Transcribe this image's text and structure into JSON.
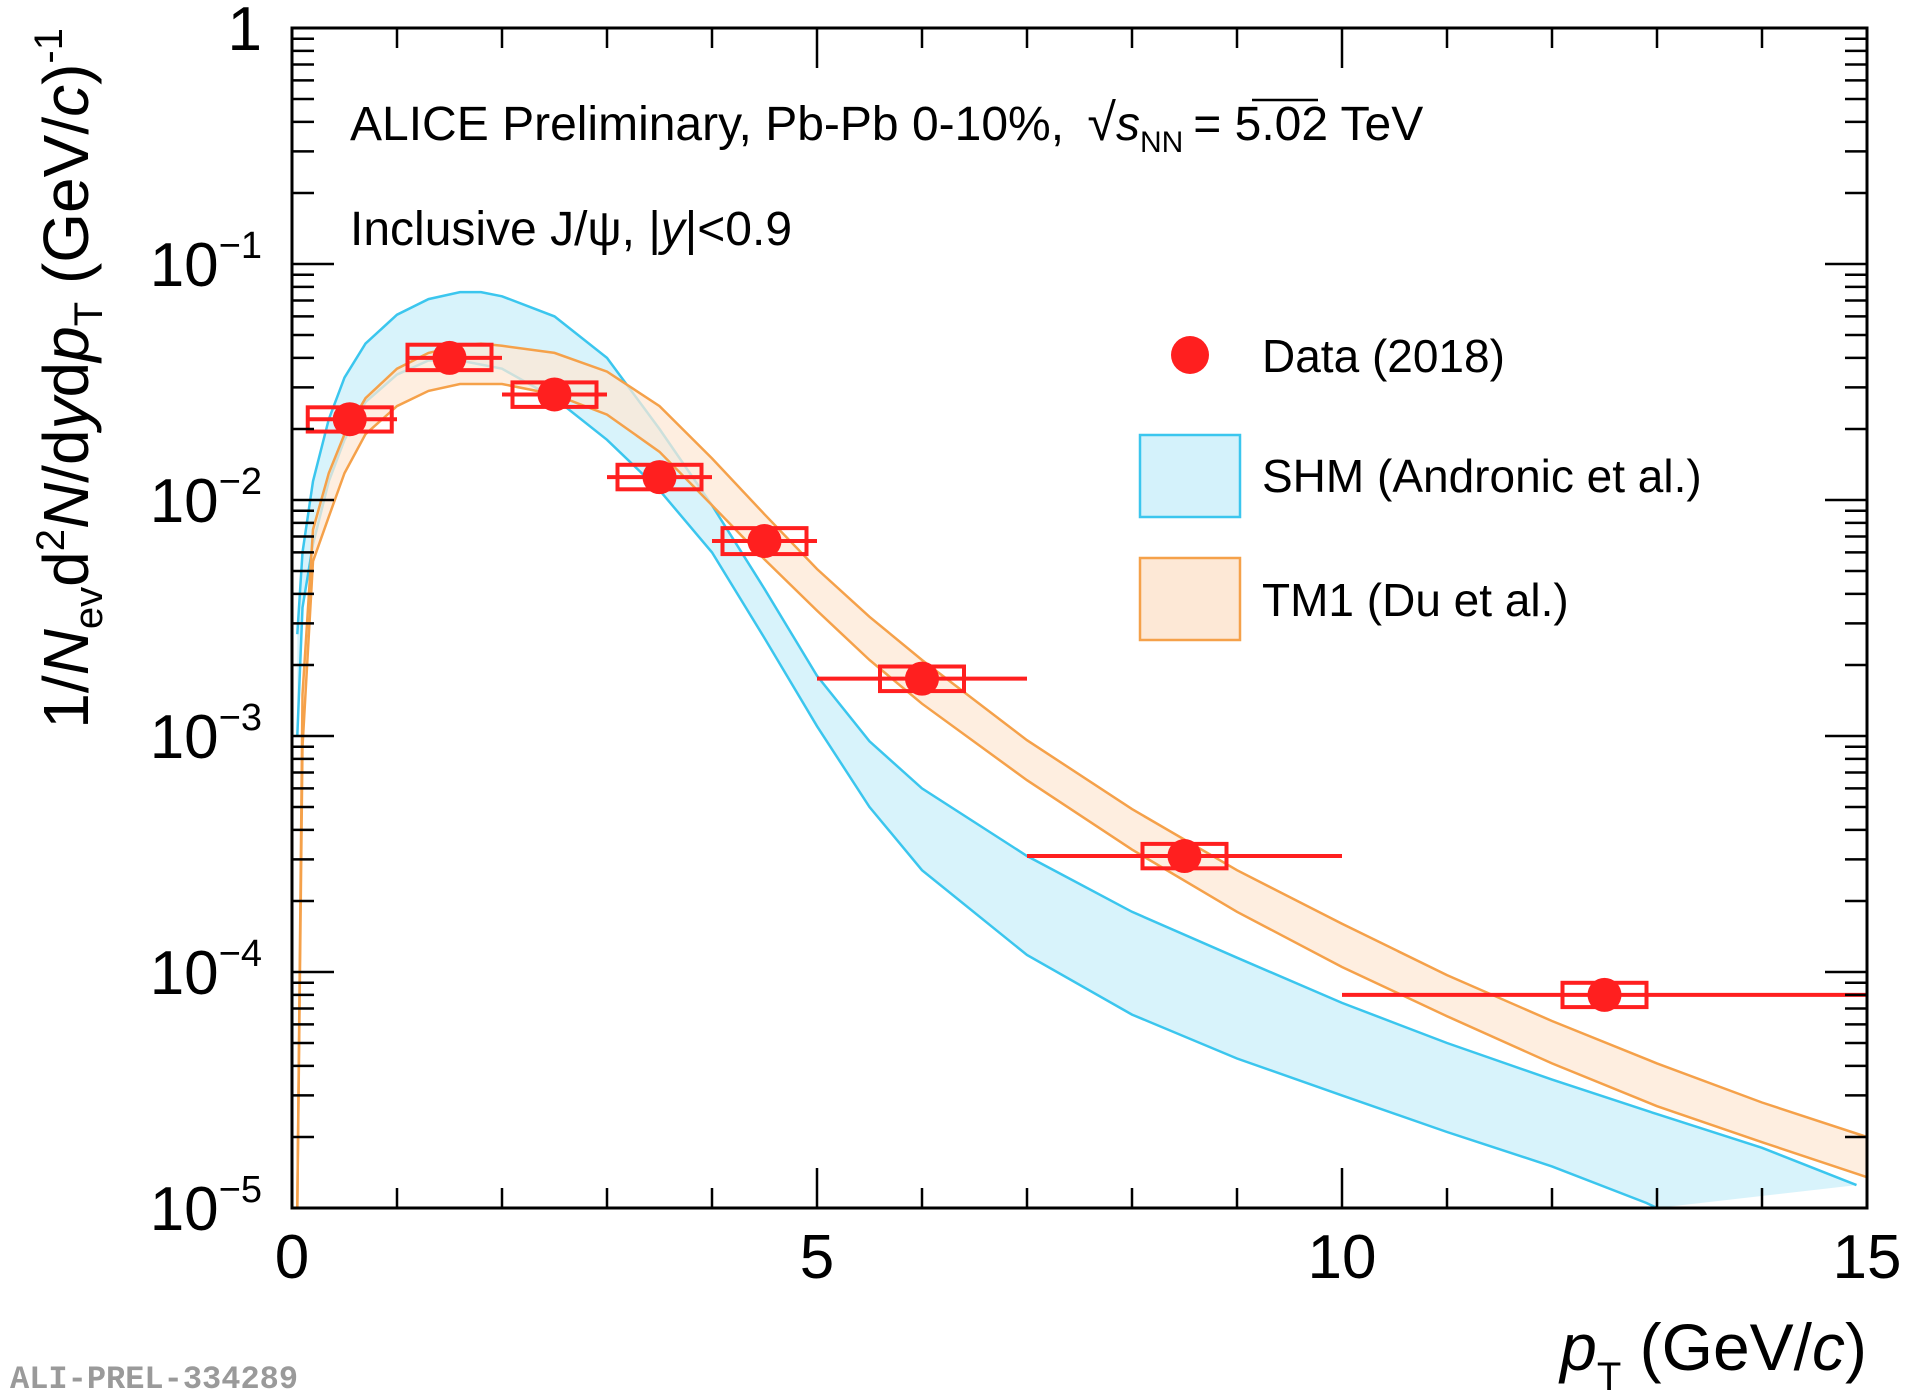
{
  "chart_data": {
    "type": "scatter",
    "title": "ALICE Preliminary, Pb-Pb 0-10%, √s_NN = 5.02 TeV",
    "title_parts": {
      "prefix": "ALICE Preliminary, Pb-Pb 0-10%,",
      "sqrt_symbol": "√",
      "s_symbol": "s",
      "s_subscript": "NN",
      "suffix": "= 5.02 TeV"
    },
    "subtitle": "Inclusive J/ψ, |y|<0.9",
    "subtitle_parts": {
      "prefix": "Inclusive J/ψ, |",
      "y": "y",
      "suffix": "|<0.9"
    },
    "xlabel": "p_T (GeV/c)",
    "xlabel_parts": {
      "p": "p",
      "sub": "T",
      "mid": " (GeV/",
      "c": "c",
      "end": ")"
    },
    "ylabel": "1/N_ev d²N/dydp_T (GeV/c)⁻¹",
    "ylabel_parts": {
      "a": "1/",
      "N": "N",
      "ev": "ev",
      "d": "d",
      "two": "2",
      "N2": "N",
      "slash": "/d",
      "y": "y",
      "d2": "d",
      "p": "p",
      "T": "T",
      "unit_open": " (GeV/",
      "c": "c",
      "unit_close": ")",
      "exp": "-1"
    },
    "xlim": [
      0,
      15
    ],
    "ylim": [
      1e-05,
      1
    ],
    "yscale": "log",
    "x_ticks": [
      0,
      5,
      10,
      15
    ],
    "x_tick_labels": [
      "0",
      "5",
      "10",
      "15"
    ],
    "y_ticks": [
      {
        "value": 1,
        "base": "1",
        "exp": ""
      },
      {
        "value": 0.1,
        "base": "10",
        "exp": "−1"
      },
      {
        "value": 0.01,
        "base": "10",
        "exp": "−2"
      },
      {
        "value": 0.001,
        "base": "10",
        "exp": "−3"
      },
      {
        "value": 0.0001,
        "base": "10",
        "exp": "−4"
      },
      {
        "value": 1e-05,
        "base": "10",
        "exp": "−5"
      }
    ],
    "legend": {
      "position": "right",
      "entries": [
        {
          "label": "Data (2018)",
          "kind": "marker",
          "color": "#ff1f1f"
        },
        {
          "label": "SHM (Andronic et al.)",
          "kind": "band",
          "fill": "#d4f2fb",
          "stroke": "#3bc6ee"
        },
        {
          "label": "TM1 (Du et al.)",
          "kind": "band",
          "fill": "#fde8d6",
          "stroke": "#f5a14a"
        }
      ]
    },
    "series": [
      {
        "name": "Data (2018)",
        "color": "#ff1f1f",
        "points": [
          {
            "x": 0.55,
            "y": 0.022,
            "xlo": 0.15,
            "xhi": 1.0,
            "syslo": 0.0195,
            "syshi": 0.0247
          },
          {
            "x": 1.5,
            "y": 0.04,
            "xlo": 1.1,
            "xhi": 2.0,
            "syslo": 0.0355,
            "syshi": 0.0455
          },
          {
            "x": 2.5,
            "y": 0.028,
            "xlo": 2.0,
            "xhi": 3.0,
            "syslo": 0.0248,
            "syshi": 0.0315
          },
          {
            "x": 3.5,
            "y": 0.0125,
            "xlo": 3.0,
            "xhi": 4.0,
            "syslo": 0.0111,
            "syshi": 0.0141
          },
          {
            "x": 4.5,
            "y": 0.0067,
            "xlo": 4.0,
            "xhi": 5.0,
            "syslo": 0.0059,
            "syshi": 0.0076
          },
          {
            "x": 6.0,
            "y": 0.00175,
            "xlo": 5.0,
            "xhi": 7.0,
            "syslo": 0.00155,
            "syshi": 0.00197
          },
          {
            "x": 8.5,
            "y": 0.00031,
            "xlo": 7.0,
            "xhi": 10.0,
            "syslo": 0.000275,
            "syshi": 0.000349
          },
          {
            "x": 12.5,
            "y": 8e-05,
            "xlo": 10.0,
            "xhi": 15.0,
            "syslo": 7.1e-05,
            "syshi": 9e-05
          }
        ]
      }
    ],
    "bands": [
      {
        "name": "SHM (Andronic et al.)",
        "fill": "#d4f2fb",
        "stroke": "#3bc6ee",
        "upper": [
          [
            0.05,
            0.0027
          ],
          [
            0.1,
            0.006
          ],
          [
            0.2,
            0.012
          ],
          [
            0.35,
            0.022
          ],
          [
            0.5,
            0.033
          ],
          [
            0.7,
            0.046
          ],
          [
            1.0,
            0.061
          ],
          [
            1.3,
            0.071
          ],
          [
            1.6,
            0.076
          ],
          [
            1.8,
            0.076
          ],
          [
            2.0,
            0.073
          ],
          [
            2.5,
            0.06
          ],
          [
            3.0,
            0.04
          ],
          [
            3.5,
            0.02
          ],
          [
            4.0,
            0.0095
          ],
          [
            4.5,
            0.0042
          ],
          [
            5.0,
            0.0018
          ],
          [
            5.5,
            0.00095
          ],
          [
            6.0,
            0.0006
          ],
          [
            7.0,
            0.00031
          ],
          [
            8.0,
            0.00018
          ],
          [
            9.0,
            0.000115
          ],
          [
            10.0,
            7.4e-05
          ],
          [
            11.0,
            5e-05
          ],
          [
            12.0,
            3.5e-05
          ],
          [
            13.0,
            2.5e-05
          ],
          [
            14.0,
            1.8e-05
          ],
          [
            14.9,
            1.25e-05
          ]
        ],
        "lower": [
          [
            0.05,
            0.001
          ],
          [
            0.1,
            0.0035
          ],
          [
            0.2,
            0.0065
          ],
          [
            0.35,
            0.012
          ],
          [
            0.5,
            0.018
          ],
          [
            0.7,
            0.026
          ],
          [
            1.0,
            0.034
          ],
          [
            1.3,
            0.039
          ],
          [
            1.6,
            0.039
          ],
          [
            2.0,
            0.036
          ],
          [
            2.5,
            0.027
          ],
          [
            3.0,
            0.018
          ],
          [
            3.5,
            0.011
          ],
          [
            4.0,
            0.006
          ],
          [
            4.5,
            0.0026
          ],
          [
            5.0,
            0.0011
          ],
          [
            5.5,
            0.0005
          ],
          [
            6.0,
            0.00027
          ],
          [
            7.0,
            0.000118
          ],
          [
            8.0,
            6.6e-05
          ],
          [
            9.0,
            4.3e-05
          ],
          [
            10.0,
            3e-05
          ],
          [
            11.0,
            2.1e-05
          ],
          [
            12.0,
            1.5e-05
          ],
          [
            12.9,
            1.05e-05
          ],
          [
            13.0,
            1e-05
          ]
        ]
      },
      {
        "name": "TM1 (Du et al.)",
        "fill": "#fde8d6",
        "stroke": "#f5a14a",
        "upper": [
          [
            0.05,
            1e-05
          ],
          [
            0.1,
            0.0015
          ],
          [
            0.2,
            0.0075
          ],
          [
            0.35,
            0.013
          ],
          [
            0.5,
            0.019
          ],
          [
            0.7,
            0.027
          ],
          [
            1.0,
            0.036
          ],
          [
            1.3,
            0.042
          ],
          [
            1.6,
            0.045
          ],
          [
            1.8,
            0.046
          ],
          [
            2.0,
            0.045
          ],
          [
            2.5,
            0.042
          ],
          [
            3.0,
            0.035
          ],
          [
            3.5,
            0.025
          ],
          [
            4.0,
            0.015
          ],
          [
            4.5,
            0.0087
          ],
          [
            5.0,
            0.0051
          ],
          [
            5.5,
            0.0032
          ],
          [
            6.0,
            0.0021
          ],
          [
            7.0,
            0.00096
          ],
          [
            8.0,
            0.00049
          ],
          [
            9.0,
            0.00027
          ],
          [
            10.0,
            0.00016
          ],
          [
            11.0,
            9.7e-05
          ],
          [
            12.0,
            6.2e-05
          ],
          [
            13.0,
            4.1e-05
          ],
          [
            14.0,
            2.8e-05
          ],
          [
            15.0,
            2e-05
          ]
        ],
        "lower": [
          [
            0.05,
            1e-05
          ],
          [
            0.1,
            0.0009
          ],
          [
            0.2,
            0.0055
          ],
          [
            0.35,
            0.0085
          ],
          [
            0.5,
            0.013
          ],
          [
            0.7,
            0.019
          ],
          [
            1.0,
            0.025
          ],
          [
            1.3,
            0.029
          ],
          [
            1.6,
            0.031
          ],
          [
            2.0,
            0.031
          ],
          [
            2.5,
            0.028
          ],
          [
            3.0,
            0.023
          ],
          [
            3.5,
            0.016
          ],
          [
            4.0,
            0.0095
          ],
          [
            4.5,
            0.0056
          ],
          [
            5.0,
            0.0034
          ],
          [
            5.5,
            0.0021
          ],
          [
            6.0,
            0.00137
          ],
          [
            7.0,
            0.00065
          ],
          [
            8.0,
            0.00033
          ],
          [
            9.0,
            0.00018
          ],
          [
            10.0,
            0.000105
          ],
          [
            11.0,
            6.5e-05
          ],
          [
            12.0,
            4.1e-05
          ],
          [
            13.0,
            2.7e-05
          ],
          [
            14.0,
            1.9e-05
          ],
          [
            15.0,
            1.35e-05
          ]
        ]
      }
    ]
  },
  "footer_code": "ALI-PREL-334289"
}
